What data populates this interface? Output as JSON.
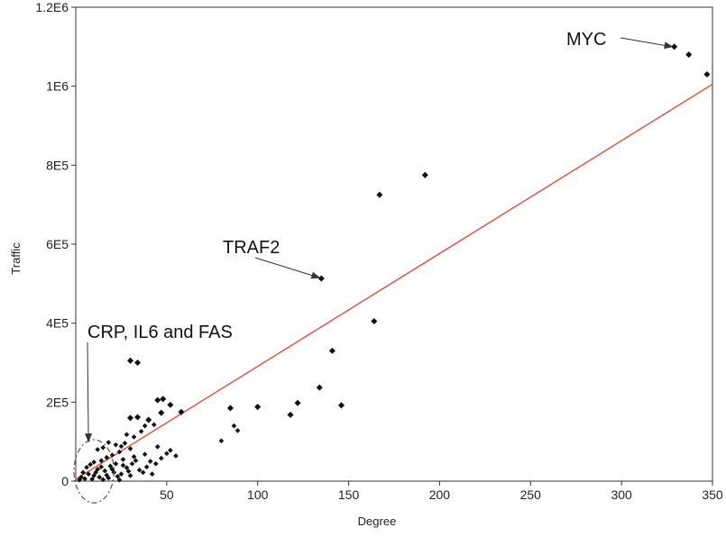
{
  "chart_data": {
    "type": "scatter",
    "xlabel": "Degree",
    "ylabel": "Traffic",
    "xlim": [
      0,
      350
    ],
    "ylim": [
      0,
      1200000
    ],
    "x_ticks": [
      {
        "value": 50,
        "label": "50"
      },
      {
        "value": 100,
        "label": "100"
      },
      {
        "value": 150,
        "label": "150"
      },
      {
        "value": 200,
        "label": "200"
      },
      {
        "value": 250,
        "label": "250"
      },
      {
        "value": 300,
        "label": "300"
      },
      {
        "value": 350,
        "label": "350"
      }
    ],
    "y_ticks": [
      {
        "value": 0,
        "label": "0"
      },
      {
        "value": 200000,
        "label": "2E5"
      },
      {
        "value": 400000,
        "label": "4E5"
      },
      {
        "value": 600000,
        "label": "6E5"
      },
      {
        "value": 800000,
        "label": "8E5"
      },
      {
        "value": 1000000,
        "label": "1E6"
      },
      {
        "value": 1200000,
        "label": "1.2E6"
      }
    ],
    "grid": false,
    "trend_line": {
      "color": "#e8402a",
      "points": [
        [
          0,
          5000
        ],
        [
          350,
          1005000
        ]
      ]
    },
    "point_color": "#111111",
    "points": [
      {
        "x": 329,
        "y": 1100000
      },
      {
        "x": 337,
        "y": 1080000
      },
      {
        "x": 347,
        "y": 1030000
      },
      {
        "x": 192,
        "y": 775000
      },
      {
        "x": 167,
        "y": 725000
      },
      {
        "x": 135,
        "y": 513000
      },
      {
        "x": 164,
        "y": 405000
      },
      {
        "x": 141,
        "y": 330000
      },
      {
        "x": 134,
        "y": 237000
      },
      {
        "x": 146,
        "y": 192000
      },
      {
        "x": 122,
        "y": 198000
      },
      {
        "x": 118,
        "y": 168000
      },
      {
        "x": 100,
        "y": 188000
      },
      {
        "x": 85,
        "y": 185000
      },
      {
        "x": 87,
        "y": 140000
      },
      {
        "x": 89,
        "y": 128000
      },
      {
        "x": 80,
        "y": 102000
      },
      {
        "x": 58,
        "y": 175000
      },
      {
        "x": 48,
        "y": 208000
      },
      {
        "x": 45,
        "y": 205000
      },
      {
        "x": 52,
        "y": 193000
      },
      {
        "x": 47,
        "y": 173000
      },
      {
        "x": 40,
        "y": 155000
      },
      {
        "x": 43,
        "y": 143000
      },
      {
        "x": 34,
        "y": 300000
      },
      {
        "x": 30,
        "y": 305000
      },
      {
        "x": 34,
        "y": 162000
      },
      {
        "x": 38,
        "y": 140000
      },
      {
        "x": 36,
        "y": 126000
      },
      {
        "x": 32,
        "y": 112000
      },
      {
        "x": 45,
        "y": 87000
      },
      {
        "x": 52,
        "y": 78000
      },
      {
        "x": 50,
        "y": 70000
      },
      {
        "x": 55,
        "y": 64000
      },
      {
        "x": 47,
        "y": 58000
      },
      {
        "x": 41,
        "y": 50000
      },
      {
        "x": 44,
        "y": 44000
      },
      {
        "x": 39,
        "y": 36000
      },
      {
        "x": 30,
        "y": 160000
      },
      {
        "x": 28,
        "y": 118000
      },
      {
        "x": 27,
        "y": 96000
      },
      {
        "x": 25,
        "y": 88000
      },
      {
        "x": 30,
        "y": 82000
      },
      {
        "x": 22,
        "y": 92000
      },
      {
        "x": 18,
        "y": 98000
      },
      {
        "x": 15,
        "y": 85000
      },
      {
        "x": 12,
        "y": 80000
      },
      {
        "x": 24,
        "y": 74000
      },
      {
        "x": 20,
        "y": 66000
      },
      {
        "x": 17,
        "y": 60000
      },
      {
        "x": 26,
        "y": 55000
      },
      {
        "x": 33,
        "y": 52000
      },
      {
        "x": 14,
        "y": 52000
      },
      {
        "x": 10,
        "y": 48000
      },
      {
        "x": 8,
        "y": 42000
      },
      {
        "x": 22,
        "y": 44000
      },
      {
        "x": 19,
        "y": 38000
      },
      {
        "x": 28,
        "y": 34000
      },
      {
        "x": 35,
        "y": 28000
      },
      {
        "x": 6,
        "y": 35000
      },
      {
        "x": 12,
        "y": 30000
      },
      {
        "x": 16,
        "y": 26000
      },
      {
        "x": 21,
        "y": 22000
      },
      {
        "x": 25,
        "y": 18000
      },
      {
        "x": 30,
        "y": 14000
      },
      {
        "x": 4,
        "y": 22000
      },
      {
        "x": 7,
        "y": 18000
      },
      {
        "x": 10,
        "y": 14000
      },
      {
        "x": 13,
        "y": 10000
      },
      {
        "x": 18,
        "y": 8000
      },
      {
        "x": 3,
        "y": 10000
      },
      {
        "x": 5,
        "y": 6000
      },
      {
        "x": 9,
        "y": 5000
      },
      {
        "x": 15,
        "y": 4000
      },
      {
        "x": 24,
        "y": 3000
      },
      {
        "x": 2,
        "y": 3000
      },
      {
        "x": 11,
        "y": 22000
      },
      {
        "x": 14,
        "y": 36000
      },
      {
        "x": 20,
        "y": 30000
      },
      {
        "x": 26,
        "y": 40000
      },
      {
        "x": 31,
        "y": 44000
      },
      {
        "x": 37,
        "y": 22000
      },
      {
        "x": 42,
        "y": 18000
      },
      {
        "x": 38,
        "y": 68000
      },
      {
        "x": 32,
        "y": 62000
      },
      {
        "x": 29,
        "y": 25000
      },
      {
        "x": 23,
        "y": 12000
      },
      {
        "x": 17,
        "y": 15000
      }
    ],
    "annotations": [
      {
        "text": "MYC",
        "target_x": 328,
        "target_y": 1100000
      },
      {
        "text": "TRAF2",
        "target_x": 134,
        "target_y": 515000
      },
      {
        "text": "CRP, IL6 and FAS",
        "target_x": 7,
        "target_y": 100000
      }
    ],
    "highlight_circle": {
      "cx": 10,
      "cy": 25000,
      "rx": 11,
      "ry": 80000
    }
  }
}
